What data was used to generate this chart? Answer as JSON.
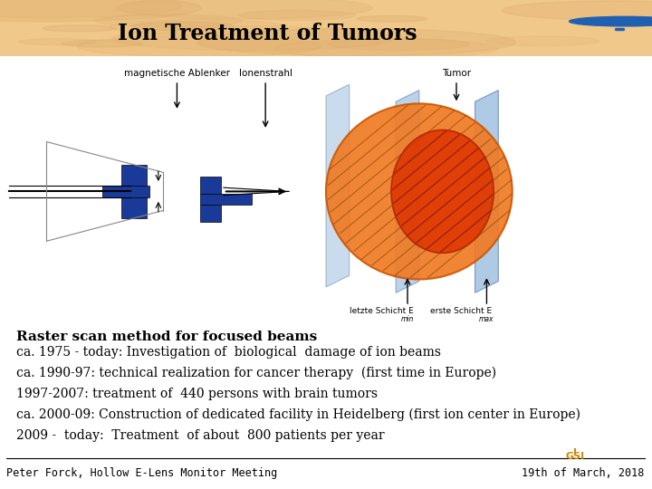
{
  "title": "Ion Treatment of Tumors",
  "header_bg_color": "#f0c88a",
  "slide_bg_color": "#ffffff",
  "bold_line": "Raster scan method for focused beams",
  "bullet_lines": [
    "ca. 1975 - today: Investigation of  biological  damage of ion beams",
    "ca. 1990-97: technical realization for cancer therapy  (first time in Europe)",
    "1997-2007: treatment of  440 persons with brain tumors",
    "ca. 2000-09: Construction of dedicated facility in Heidelberg (first ion center in Europe)",
    "2009 -  today:  Treatment  of about  800 patients per year"
  ],
  "footer_left": "Peter Forck, Hollow E-Lens Monitor Meeting",
  "footer_right": "19th of March, 2018",
  "title_fontsize": 17,
  "bold_line_fontsize": 11,
  "bullet_fontsize": 10,
  "footer_fontsize": 8.5,
  "label_fontsize": 7.5
}
